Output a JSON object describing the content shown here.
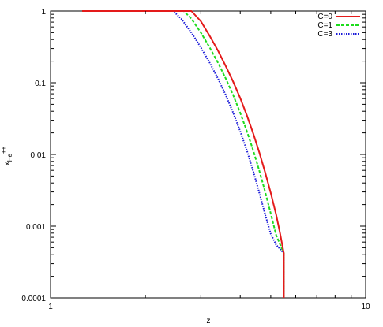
{
  "chart_data": {
    "type": "line",
    "xlabel": "z",
    "ylabel_base": "x",
    "ylabel_sub": "He",
    "ylabel_sup": "++",
    "xscale": "log",
    "yscale": "log",
    "xlim": [
      1,
      10
    ],
    "ylim": [
      0.0001,
      1
    ],
    "x_ticks": [
      {
        "value": 1,
        "label": "1"
      },
      {
        "value": 10,
        "label": "10"
      }
    ],
    "y_ticks": [
      {
        "value": 1,
        "label": "1"
      },
      {
        "value": 0.1,
        "label": "0.1"
      },
      {
        "value": 0.01,
        "label": "0.01"
      },
      {
        "value": 0.001,
        "label": "0.001"
      },
      {
        "value": 0.0001,
        "label": "0.0001"
      }
    ],
    "grid": false,
    "legend_position": "top-right",
    "series": [
      {
        "name": "C=0",
        "color": "#e41a1a",
        "dash": "solid",
        "points": [
          [
            1.26,
            1
          ],
          [
            2.8,
            1
          ],
          [
            3.0,
            0.72
          ],
          [
            3.2,
            0.45
          ],
          [
            3.4,
            0.28
          ],
          [
            3.6,
            0.17
          ],
          [
            3.8,
            0.103
          ],
          [
            4.0,
            0.061
          ],
          [
            4.2,
            0.035
          ],
          [
            4.4,
            0.0195
          ],
          [
            4.6,
            0.0106
          ],
          [
            4.8,
            0.0056
          ],
          [
            5.0,
            0.0029
          ],
          [
            5.2,
            0.00145
          ],
          [
            5.35,
            0.0008
          ],
          [
            5.5,
            0.00042
          ],
          [
            5.5,
            0.0001
          ]
        ]
      },
      {
        "name": "C=1",
        "color": "#1ddc1d",
        "dash": "dashed",
        "points": [
          [
            1.26,
            1
          ],
          [
            2.65,
            1
          ],
          [
            2.8,
            0.78
          ],
          [
            3.0,
            0.5
          ],
          [
            3.2,
            0.31
          ],
          [
            3.4,
            0.19
          ],
          [
            3.6,
            0.114
          ],
          [
            3.8,
            0.067
          ],
          [
            4.0,
            0.038
          ],
          [
            4.2,
            0.021
          ],
          [
            4.4,
            0.0113
          ],
          [
            4.6,
            0.0059
          ],
          [
            4.8,
            0.003
          ],
          [
            5.0,
            0.0015
          ],
          [
            5.2,
            0.00075
          ],
          [
            5.5,
            0.00042
          ],
          [
            5.5,
            0.0001
          ]
        ]
      },
      {
        "name": "C=3",
        "color": "#1a1ad8",
        "dash": "dotted",
        "points": [
          [
            1.26,
            1
          ],
          [
            2.45,
            1
          ],
          [
            2.6,
            0.78
          ],
          [
            2.8,
            0.5
          ],
          [
            3.0,
            0.31
          ],
          [
            3.2,
            0.19
          ],
          [
            3.4,
            0.114
          ],
          [
            3.6,
            0.067
          ],
          [
            3.8,
            0.038
          ],
          [
            4.0,
            0.021
          ],
          [
            4.2,
            0.0113
          ],
          [
            4.4,
            0.0058
          ],
          [
            4.6,
            0.0029
          ],
          [
            4.8,
            0.00145
          ],
          [
            5.0,
            0.00078
          ],
          [
            5.2,
            0.00055
          ],
          [
            5.5,
            0.00042
          ],
          [
            5.5,
            0.0001
          ]
        ]
      }
    ]
  }
}
